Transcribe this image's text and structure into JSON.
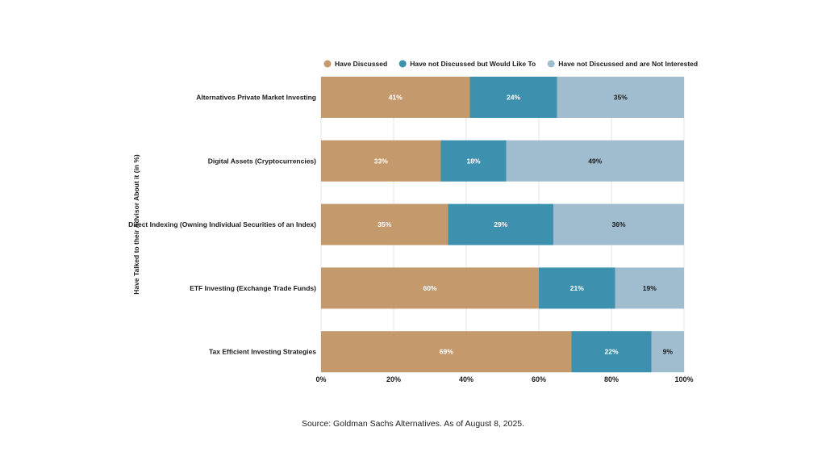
{
  "chart_data": {
    "type": "bar",
    "orientation": "horizontal",
    "stacked": true,
    "title": "",
    "xlabel": "",
    "ylabel": "Have Talked to their Advisor About it (in %)",
    "xlim": [
      0,
      100
    ],
    "xticks": [
      "0%",
      "20%",
      "40%",
      "60%",
      "80%",
      "100%"
    ],
    "grid": true,
    "legend_position": "top",
    "categories": [
      "Alternatives Private Market Investing",
      "Digital Assets (Cryptocurrencies)",
      "Direct Indexing (Owning Individual Securities of an Index)",
      "ETF Investing (Exchange Trade Funds)",
      "Tax Efficient Investing Strategies"
    ],
    "series": [
      {
        "name": "Have Discussed",
        "color": "#C49A6C",
        "label_color": "#ffffff",
        "values": [
          41,
          33,
          35,
          60,
          69
        ]
      },
      {
        "name": "Have not Discussed but Would Like To",
        "color": "#3D91AE",
        "label_color": "#ffffff",
        "values": [
          24,
          18,
          29,
          21,
          22
        ]
      },
      {
        "name": "Have not Discussed and are Not Interested",
        "color": "#A0BDD0",
        "label_color": "#1a1a1a",
        "values": [
          35,
          49,
          36,
          19,
          9
        ]
      }
    ]
  },
  "source": "Source: Goldman Sachs Alternatives. As of August 8, 2025."
}
